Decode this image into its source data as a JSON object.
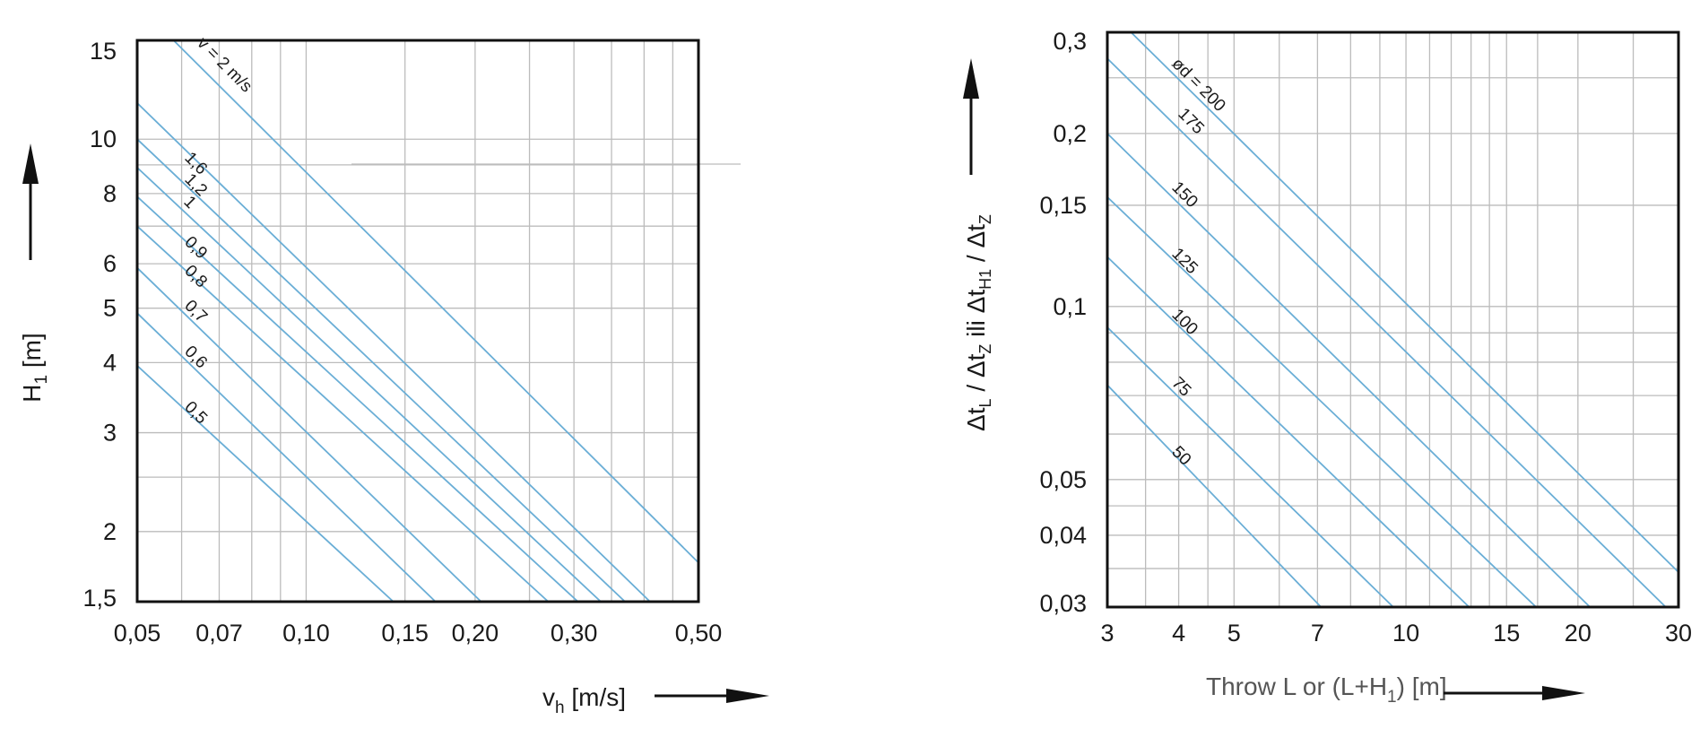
{
  "chart_data": [
    {
      "type": "line",
      "x_scale": "log",
      "y_scale": "log",
      "xlim": [
        0.05,
        0.5
      ],
      "ylim": [
        1.5,
        15
      ],
      "x_ticks": [
        0.05,
        0.07,
        0.1,
        0.15,
        0.2,
        0.3,
        0.5
      ],
      "x_tick_labels": [
        "0,05",
        "0,07",
        "0,10",
        "0,15",
        "0,20",
        "0,30",
        "0,50"
      ],
      "y_ticks": [
        1.5,
        2,
        3,
        4,
        5,
        6,
        8,
        10,
        15
      ],
      "y_tick_labels": [
        "1,5",
        "2",
        "3",
        "4",
        "5",
        "6",
        "8",
        "10",
        "15"
      ],
      "x_label": {
        "main": "v",
        "sub": "h",
        "unit": " [m/s]"
      },
      "y_label": {
        "main": "H",
        "sub": "1",
        "unit": "  [m]"
      },
      "grid": true,
      "line_color": "#6aaed6",
      "series": [
        {
          "name": "v_L = 2 m/s",
          "label": "v  = 2 m/s",
          "x": [
            0.05,
            0.5
          ],
          "y": [
            17.4,
            1.76
          ]
        },
        {
          "name": "1,6",
          "label": "1,6",
          "x": [
            0.05,
            0.41
          ],
          "y": [
            11.6,
            1.5
          ]
        },
        {
          "name": "1,2",
          "label": "1,2",
          "x": [
            0.05,
            0.37
          ],
          "y": [
            10.0,
            1.5
          ]
        },
        {
          "name": "1",
          "label": "1",
          "x": [
            0.05,
            0.335
          ],
          "y": [
            8.9,
            1.5
          ]
        },
        {
          "name": "0,9",
          "label": "0,9",
          "x": [
            0.05,
            0.305
          ],
          "y": [
            7.9,
            1.5
          ]
        },
        {
          "name": "0,8",
          "label": "0,8",
          "x": [
            0.05,
            0.27
          ],
          "y": [
            7.0,
            1.5
          ]
        },
        {
          "name": "0,7",
          "label": "0,7",
          "x": [
            0.05,
            0.205
          ],
          "y": [
            5.9,
            1.5
          ]
        },
        {
          "name": "0,6",
          "label": "0,6",
          "x": [
            0.05,
            0.17
          ],
          "y": [
            4.9,
            1.5
          ]
        },
        {
          "name": "0,5",
          "label": "0,5",
          "x": [
            0.05,
            0.143
          ],
          "y": [
            3.95,
            1.5
          ]
        }
      ]
    },
    {
      "type": "line",
      "x_scale": "log",
      "y_scale": "log",
      "xlim": [
        3,
        30
      ],
      "ylim": [
        0.03,
        0.3
      ],
      "x_ticks": [
        3,
        4,
        5,
        7,
        10,
        15,
        20,
        30
      ],
      "x_tick_labels": [
        "3",
        "4",
        "5",
        "7",
        "10",
        "15",
        "20",
        "30"
      ],
      "y_ticks": [
        0.03,
        0.04,
        0.05,
        0.1,
        0.15,
        0.2,
        0.3
      ],
      "y_tick_labels": [
        "0,03",
        "0,04",
        "0,05",
        "0,1",
        "0,15",
        "0,2",
        "0,3"
      ],
      "x_label": {
        "text1": "Throw L",
        "text2": " or (L+H",
        "sub": "1",
        "text3": ") [m]"
      },
      "y_label": {
        "p1": "Δt",
        "s1": "L",
        "p2": " / Δt",
        "s2": "Z",
        "p3": " ili Δt",
        "s3": "H1",
        "p4": " / Δt",
        "s4": "Z"
      },
      "grid": true,
      "line_color": "#6aaed6",
      "series": [
        {
          "name": "ød = 200",
          "label": "ød = 200",
          "x": [
            3.3,
            30
          ],
          "y": [
            0.3,
            0.0345
          ]
        },
        {
          "name": "175",
          "label": "175",
          "x": [
            3,
            28.5
          ],
          "y": [
            0.27,
            0.03
          ]
        },
        {
          "name": "150",
          "label": "150",
          "x": [
            3,
            21
          ],
          "y": [
            0.2,
            0.03
          ]
        },
        {
          "name": "125",
          "label": "125",
          "x": [
            3,
            16.9
          ],
          "y": [
            0.155,
            0.03
          ]
        },
        {
          "name": "100",
          "label": "100",
          "x": [
            3,
            12.9
          ],
          "y": [
            0.122,
            0.03
          ]
        },
        {
          "name": "75",
          "label": "75",
          "x": [
            3,
            9.5
          ],
          "y": [
            0.092,
            0.03
          ]
        },
        {
          "name": "50",
          "label": "50",
          "x": [
            3,
            7.1
          ],
          "y": [
            0.073,
            0.03
          ]
        }
      ]
    }
  ]
}
